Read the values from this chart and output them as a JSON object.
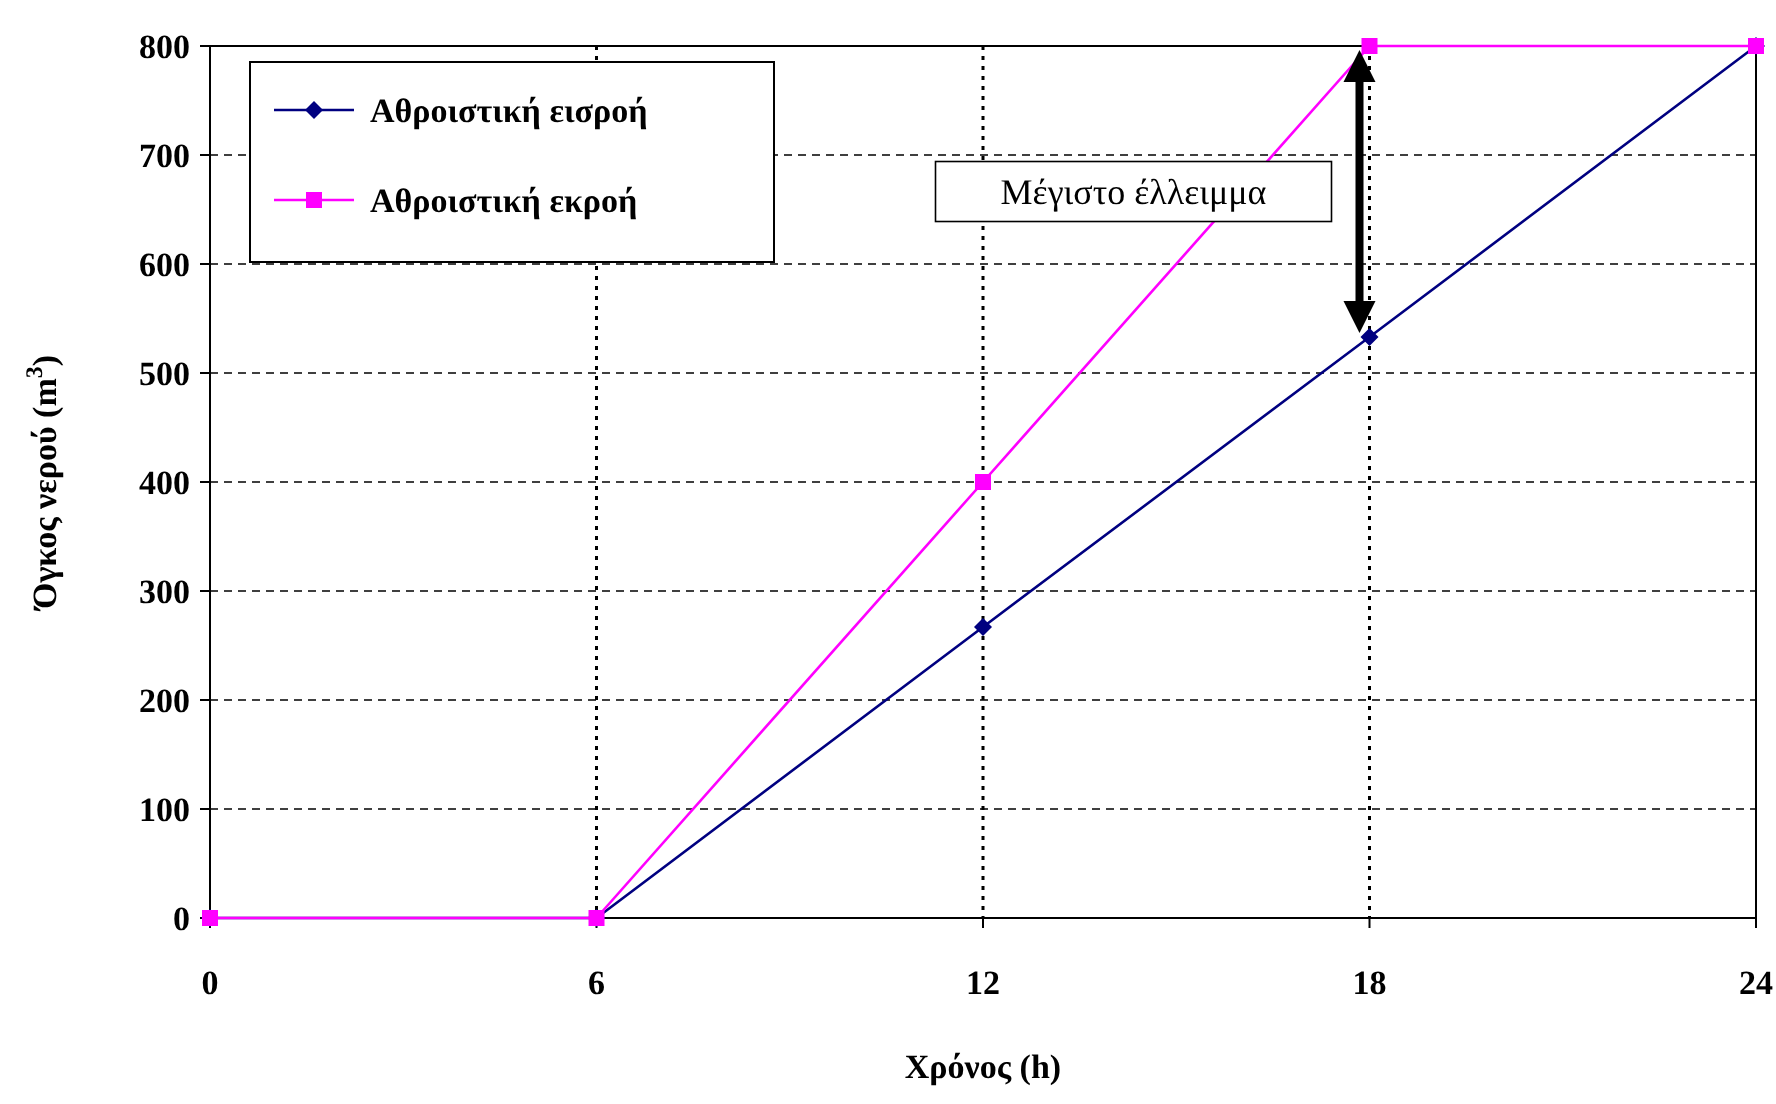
{
  "chart_data": {
    "type": "line",
    "xlabel": "Χρόνος (h)",
    "ylabel": "Όγκος νερού (m$^{3}$)",
    "x": [
      0,
      6,
      12,
      18,
      24
    ],
    "series": [
      {
        "name": "Αθροιστική εισροή",
        "color": "#000080",
        "marker": "diamond",
        "values": [
          0,
          0,
          267,
          533,
          800
        ]
      },
      {
        "name": "Αθροιστική εκροή",
        "color": "#ff00ff",
        "marker": "square",
        "values": [
          0,
          0,
          400,
          800,
          800
        ]
      }
    ],
    "xlim": [
      0,
      24
    ],
    "xticks": [
      0,
      6,
      12,
      18,
      24
    ],
    "ylim": [
      0,
      800
    ],
    "yticks": [
      0,
      100,
      200,
      300,
      400,
      500,
      600,
      700,
      800
    ],
    "grid": true,
    "legend": "top left",
    "annotations": [
      "Μέγιστο έλλειμμα"
    ]
  }
}
